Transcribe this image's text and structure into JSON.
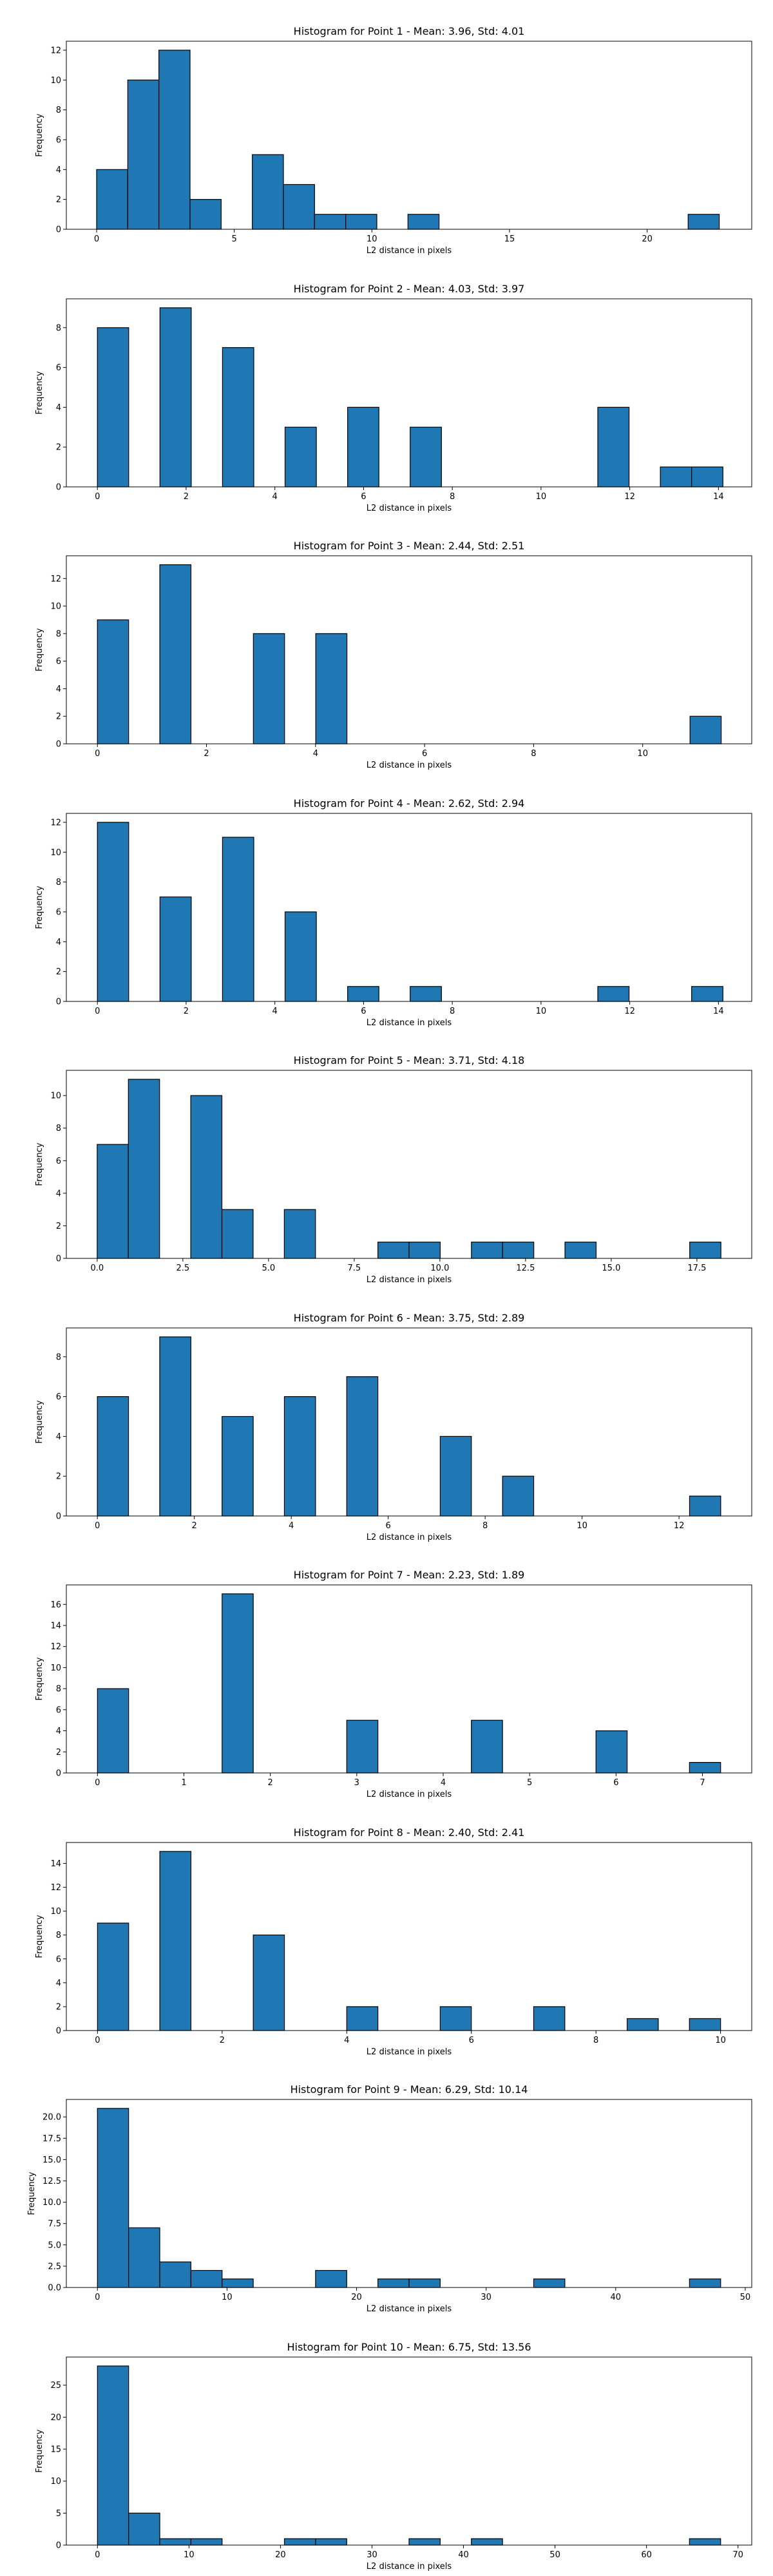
{
  "figure": {
    "background": "#ffffff"
  },
  "style": {
    "bar_color": "#1f77b4",
    "edge_color": "#000000"
  },
  "chart_data": [
    {
      "type": "bar",
      "title": "Histogram for Point 1 - Mean: 3.96, Std: 4.01",
      "xlabel": "L2 distance in pixels",
      "ylabel": "Frequency",
      "xlim": [
        -1.1,
        23.8
      ],
      "ylim": [
        0,
        12.6
      ],
      "xticks": [
        0,
        5,
        10,
        15,
        20
      ],
      "xtick_labels": [
        "0",
        "5",
        "10",
        "15",
        "20"
      ],
      "yticks": [
        0,
        2,
        4,
        6,
        8,
        10,
        12
      ],
      "ytick_labels": [
        "0",
        "2",
        "4",
        "6",
        "8",
        "10",
        "12"
      ],
      "bin_edges": [
        0.0,
        1.131,
        2.262,
        3.393,
        4.524,
        5.655,
        6.786,
        7.917,
        9.048,
        10.179,
        11.31,
        12.441,
        13.572,
        14.703,
        15.834,
        16.965,
        18.096,
        19.227,
        20.358,
        21.489,
        22.62
      ],
      "values": [
        4,
        10,
        12,
        2,
        0,
        5,
        3,
        1,
        1,
        0,
        1,
        0,
        0,
        0,
        0,
        0,
        0,
        0,
        0,
        1
      ]
    },
    {
      "type": "bar",
      "title": "Histogram for Point 2 - Mean: 4.03, Std: 3.97",
      "xlabel": "L2 distance in pixels",
      "ylabel": "Frequency",
      "xlim": [
        -0.7,
        14.75
      ],
      "ylim": [
        0,
        9.45
      ],
      "xticks": [
        0,
        2,
        4,
        6,
        8,
        10,
        12,
        14
      ],
      "xtick_labels": [
        "0",
        "2",
        "4",
        "6",
        "8",
        "10",
        "12",
        "14"
      ],
      "yticks": [
        0,
        2,
        4,
        6,
        8
      ],
      "ytick_labels": [
        "0",
        "2",
        "4",
        "6",
        "8"
      ],
      "bin_edges": [
        0.0,
        0.705,
        1.41,
        2.115,
        2.82,
        3.525,
        4.23,
        4.935,
        5.64,
        6.345,
        7.05,
        7.755,
        8.46,
        9.165,
        9.87,
        10.575,
        11.28,
        11.985,
        12.69,
        13.395,
        14.1
      ],
      "values": [
        8,
        0,
        9,
        0,
        7,
        0,
        3,
        0,
        4,
        0,
        3,
        0,
        0,
        0,
        0,
        0,
        4,
        0,
        1,
        1
      ]
    },
    {
      "type": "bar",
      "title": "Histogram for Point 3 - Mean: 2.44, Std: 2.51",
      "xlabel": "L2 distance in pixels",
      "ylabel": "Frequency",
      "xlim": [
        -0.57,
        12.0
      ],
      "ylim": [
        0,
        13.65
      ],
      "xticks": [
        0,
        2,
        4,
        6,
        8,
        10
      ],
      "xtick_labels": [
        "0",
        "2",
        "4",
        "6",
        "8",
        "10"
      ],
      "yticks": [
        0,
        2,
        4,
        6,
        8,
        10,
        12
      ],
      "ytick_labels": [
        "0",
        "2",
        "4",
        "6",
        "8",
        "10",
        "12"
      ],
      "bin_edges": [
        0.0,
        0.572,
        1.144,
        1.716,
        2.288,
        2.86,
        3.432,
        4.004,
        4.576,
        5.148,
        5.72,
        6.292,
        6.864,
        7.436,
        8.008,
        8.58,
        9.152,
        9.724,
        10.296,
        10.868,
        11.44
      ],
      "values": [
        9,
        0,
        13,
        0,
        0,
        8,
        0,
        8,
        0,
        0,
        0,
        0,
        0,
        0,
        0,
        0,
        0,
        0,
        0,
        2
      ]
    },
    {
      "type": "bar",
      "title": "Histogram for Point 4 - Mean: 2.62, Std: 2.94",
      "xlabel": "L2 distance in pixels",
      "ylabel": "Frequency",
      "xlim": [
        -0.7,
        14.75
      ],
      "ylim": [
        0,
        12.6
      ],
      "xticks": [
        0,
        2,
        4,
        6,
        8,
        10,
        12,
        14
      ],
      "xtick_labels": [
        "0",
        "2",
        "4",
        "6",
        "8",
        "10",
        "12",
        "14"
      ],
      "yticks": [
        0,
        2,
        4,
        6,
        8,
        10,
        12
      ],
      "ytick_labels": [
        "0",
        "2",
        "4",
        "6",
        "8",
        "10",
        "12"
      ],
      "bin_edges": [
        0.0,
        0.705,
        1.41,
        2.115,
        2.82,
        3.525,
        4.23,
        4.935,
        5.64,
        6.345,
        7.05,
        7.755,
        8.46,
        9.165,
        9.87,
        10.575,
        11.28,
        11.985,
        12.69,
        13.395,
        14.1
      ],
      "values": [
        12,
        0,
        7,
        0,
        11,
        0,
        6,
        0,
        1,
        0,
        1,
        0,
        0,
        0,
        0,
        0,
        1,
        0,
        0,
        1
      ]
    },
    {
      "type": "bar",
      "title": "Histogram for Point 5 - Mean: 3.71, Std: 4.18",
      "xlabel": "L2 distance in pixels",
      "ylabel": "Frequency",
      "xlim": [
        -0.9,
        19.1
      ],
      "ylim": [
        0,
        11.55
      ],
      "xticks": [
        0.0,
        2.5,
        5.0,
        7.5,
        10.0,
        12.5,
        15.0,
        17.5
      ],
      "xtick_labels": [
        "0.0",
        "2.5",
        "5.0",
        "7.5",
        "10.0",
        "12.5",
        "15.0",
        "17.5"
      ],
      "yticks": [
        0,
        2,
        4,
        6,
        8,
        10
      ],
      "ytick_labels": [
        "0",
        "2",
        "4",
        "6",
        "8",
        "10"
      ],
      "bin_edges": [
        0.0,
        0.91,
        1.82,
        2.73,
        3.64,
        4.55,
        5.46,
        6.37,
        7.28,
        8.19,
        9.1,
        10.01,
        10.92,
        11.83,
        12.74,
        13.65,
        14.56,
        15.47,
        16.38,
        17.29,
        18.2
      ],
      "values": [
        7,
        11,
        0,
        10,
        3,
        0,
        3,
        0,
        0,
        1,
        1,
        0,
        1,
        1,
        0,
        1,
        0,
        0,
        0,
        1
      ]
    },
    {
      "type": "bar",
      "title": "Histogram for Point 6 - Mean: 3.75, Std: 2.89",
      "xlabel": "L2 distance in pixels",
      "ylabel": "Frequency",
      "xlim": [
        -0.64,
        13.5
      ],
      "ylim": [
        0,
        9.45
      ],
      "xticks": [
        0,
        2,
        4,
        6,
        8,
        10,
        12
      ],
      "xtick_labels": [
        "0",
        "2",
        "4",
        "6",
        "8",
        "10",
        "12"
      ],
      "yticks": [
        0,
        2,
        4,
        6,
        8
      ],
      "ytick_labels": [
        "0",
        "2",
        "4",
        "6",
        "8"
      ],
      "bin_edges": [
        0.0,
        0.643,
        1.286,
        1.929,
        2.572,
        3.215,
        3.858,
        4.501,
        5.144,
        5.787,
        6.43,
        7.073,
        7.716,
        8.359,
        9.002,
        9.645,
        10.288,
        10.931,
        11.574,
        12.217,
        12.86
      ],
      "values": [
        6,
        0,
        9,
        0,
        5,
        0,
        6,
        0,
        7,
        0,
        0,
        4,
        0,
        2,
        0,
        0,
        0,
        0,
        0,
        1
      ]
    },
    {
      "type": "bar",
      "title": "Histogram for Point 7 - Mean: 2.23, Std: 1.89",
      "xlabel": "L2 distance in pixels",
      "ylabel": "Frequency",
      "xlim": [
        -0.36,
        7.57
      ],
      "ylim": [
        0,
        17.85
      ],
      "xticks": [
        0,
        1,
        2,
        3,
        4,
        5,
        6,
        7
      ],
      "xtick_labels": [
        "0",
        "1",
        "2",
        "3",
        "4",
        "5",
        "6",
        "7"
      ],
      "yticks": [
        0,
        2,
        4,
        6,
        8,
        10,
        12,
        14,
        16
      ],
      "ytick_labels": [
        "0",
        "2",
        "4",
        "6",
        "8",
        "10",
        "12",
        "14",
        "16"
      ],
      "bin_edges": [
        0.0,
        0.3605,
        0.721,
        1.0815,
        1.442,
        1.8025,
        2.163,
        2.5235,
        2.884,
        3.2445,
        3.605,
        3.9655,
        4.326,
        4.6865,
        5.047,
        5.4075,
        5.768,
        6.1285,
        6.489,
        6.8495,
        7.21
      ],
      "values": [
        8,
        0,
        0,
        0,
        17,
        0,
        0,
        0,
        5,
        0,
        0,
        0,
        5,
        0,
        0,
        0,
        4,
        0,
        0,
        1
      ]
    },
    {
      "type": "bar",
      "title": "Histogram for Point 8 - Mean: 2.40, Std: 2.41",
      "xlabel": "L2 distance in pixels",
      "ylabel": "Frequency",
      "xlim": [
        -0.5,
        10.5
      ],
      "ylim": [
        0,
        15.75
      ],
      "xticks": [
        0,
        2,
        4,
        6,
        8,
        10
      ],
      "xtick_labels": [
        "0",
        "2",
        "4",
        "6",
        "8",
        "10"
      ],
      "yticks": [
        0,
        2,
        4,
        6,
        8,
        10,
        12,
        14
      ],
      "ytick_labels": [
        "0",
        "2",
        "4",
        "6",
        "8",
        "10",
        "12",
        "14"
      ],
      "bin_edges": [
        0.0,
        0.5,
        1.0,
        1.5,
        2.0,
        2.5,
        3.0,
        3.5,
        4.0,
        4.5,
        5.0,
        5.5,
        6.0,
        6.5,
        7.0,
        7.5,
        8.0,
        8.5,
        9.0,
        9.5,
        10.0
      ],
      "values": [
        9,
        0,
        15,
        0,
        0,
        8,
        0,
        0,
        2,
        0,
        0,
        2,
        0,
        0,
        2,
        0,
        0,
        1,
        0,
        1
      ]
    },
    {
      "type": "bar",
      "title": "Histogram for Point 9 - Mean: 6.29, Std: 10.14",
      "xlabel": "L2 distance in pixels",
      "ylabel": "Frequency",
      "xlim": [
        -2.4,
        50.5
      ],
      "ylim": [
        0,
        22.05
      ],
      "xticks": [
        0,
        10,
        20,
        30,
        40,
        50
      ],
      "xtick_labels": [
        "0",
        "10",
        "20",
        "30",
        "40",
        "50"
      ],
      "yticks": [
        0.0,
        2.5,
        5.0,
        7.5,
        10.0,
        12.5,
        15.0,
        17.5,
        20.0
      ],
      "ytick_labels": [
        "0.0",
        "2.5",
        "5.0",
        "7.5",
        "10.0",
        "12.5",
        "15.0",
        "17.5",
        "20.0"
      ],
      "bin_edges": [
        0.0,
        2.405,
        4.81,
        7.215,
        9.62,
        12.025,
        14.43,
        16.835,
        19.24,
        21.645,
        24.05,
        26.455,
        28.86,
        31.265,
        33.67,
        36.075,
        38.48,
        40.885,
        43.29,
        45.695,
        48.1
      ],
      "values": [
        21,
        7,
        3,
        2,
        1,
        0,
        0,
        2,
        0,
        1,
        1,
        0,
        0,
        0,
        1,
        0,
        0,
        0,
        0,
        1
      ]
    },
    {
      "type": "bar",
      "title": "Histogram for Point 10 - Mean: 6.75, Std: 13.56",
      "xlabel": "L2 distance in pixels",
      "ylabel": "Frequency",
      "xlim": [
        -3.4,
        71.5
      ],
      "ylim": [
        0,
        29.4
      ],
      "xticks": [
        0,
        10,
        20,
        30,
        40,
        50,
        60,
        70
      ],
      "xtick_labels": [
        "0",
        "10",
        "20",
        "30",
        "40",
        "50",
        "60",
        "70"
      ],
      "yticks": [
        0,
        5,
        10,
        15,
        20,
        25
      ],
      "ytick_labels": [
        "0",
        "5",
        "10",
        "15",
        "20",
        "25"
      ],
      "bin_edges": [
        0.0,
        3.405,
        6.81,
        10.215,
        13.62,
        17.025,
        20.43,
        23.835,
        27.24,
        30.645,
        34.05,
        37.455,
        40.86,
        44.265,
        47.67,
        51.075,
        54.48,
        57.885,
        61.29,
        64.695,
        68.1
      ],
      "values": [
        28,
        5,
        1,
        1,
        0,
        0,
        1,
        1,
        0,
        0,
        1,
        0,
        1,
        0,
        0,
        0,
        0,
        0,
        0,
        1
      ]
    }
  ]
}
